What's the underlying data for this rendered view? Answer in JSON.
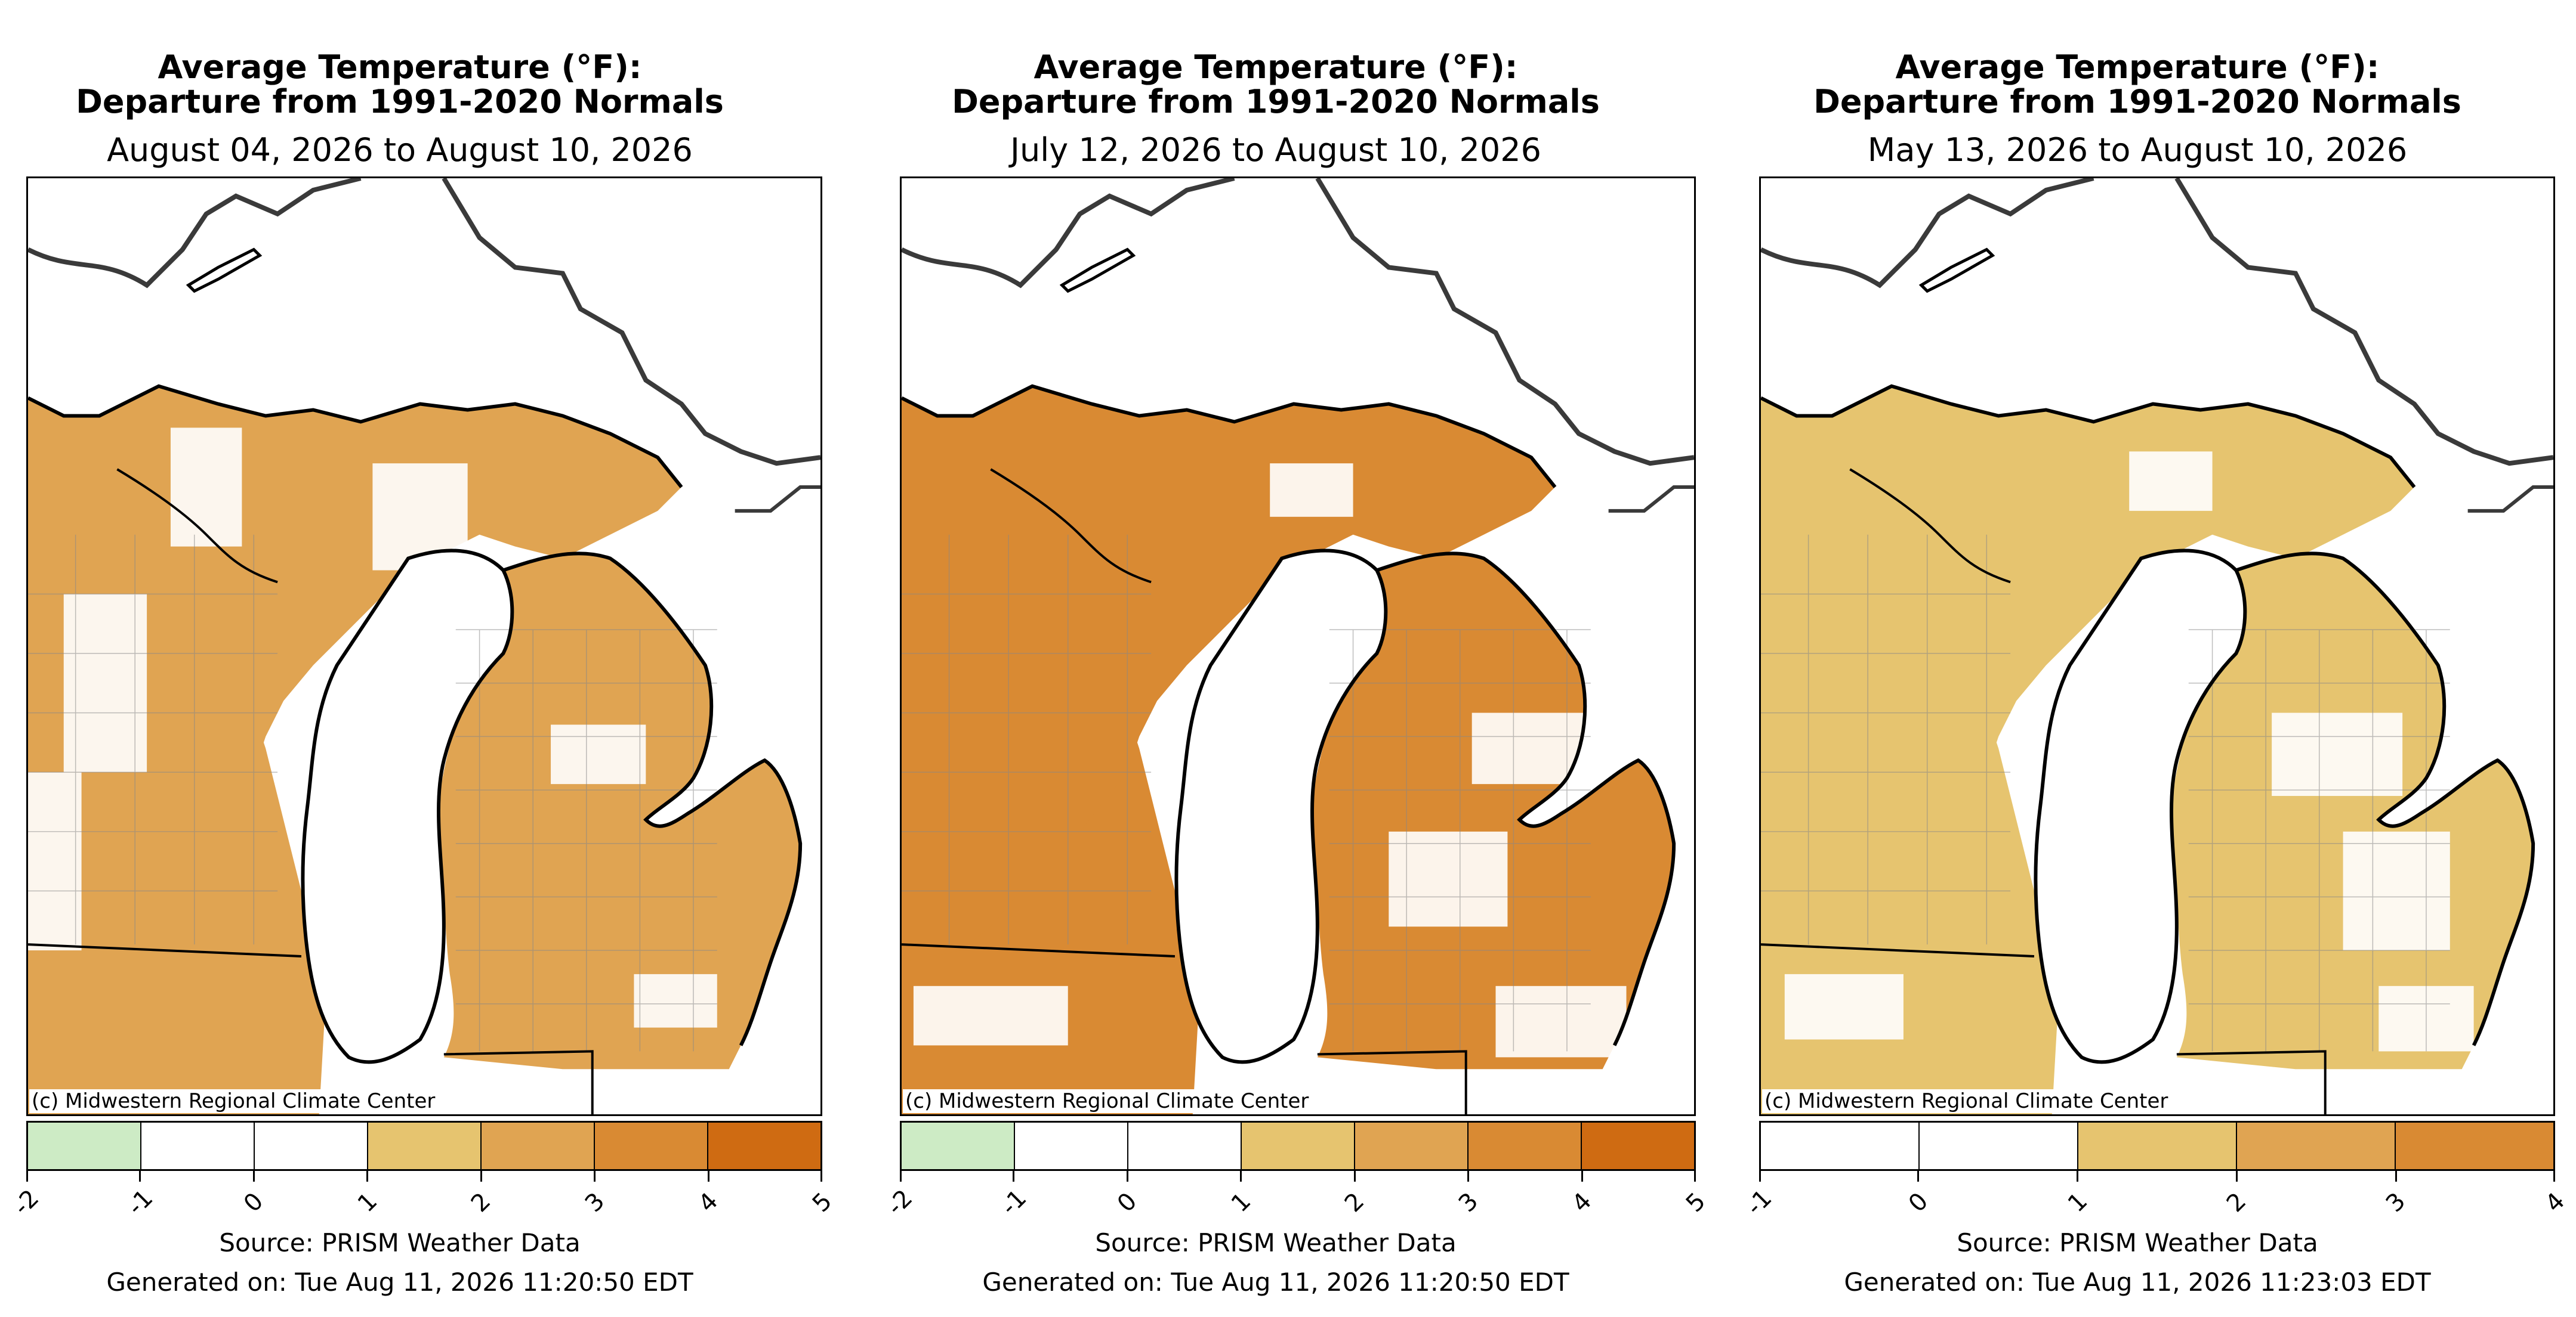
{
  "colors": {
    "cooler_1_2": "#cdebc5",
    "normal": "#ffffff",
    "warmer_1_2": "#e6c46f",
    "warmer_2_3": "#e0a452",
    "warmer_3_4": "#d98a33",
    "warmer_4_5": "#cf6b12",
    "state_border": "#000000",
    "coast_border": "#3a3a3a",
    "county_border": "#888888"
  },
  "panels": [
    {
      "title_line1": "Average Temperature (°F):",
      "title_line2": "Departure from 1991-2020 Normals",
      "date_range": "August 04, 2026 to August 10, 2026",
      "credit": "(c) Midwestern Regional Climate Center",
      "legend_ticks": [
        "-2",
        "-1",
        "0",
        "1",
        "2",
        "3",
        "4",
        "5"
      ],
      "legend_colors": [
        "#cdebc5",
        "#ffffff",
        "#ffffff",
        "#e6c46f",
        "#e0a452",
        "#d98a33",
        "#cf6b12"
      ],
      "source": "Source: PRISM Weather Data",
      "generated": "Generated on: Tue Aug 11, 2026 11:20:50 EDT",
      "map_fill_dominant": "#e0a452"
    },
    {
      "title_line1": "Average Temperature (°F):",
      "title_line2": "Departure from 1991-2020 Normals",
      "date_range": "July 12, 2026 to August 10, 2026",
      "credit": "(c) Midwestern Regional Climate Center",
      "legend_ticks": [
        "-2",
        "-1",
        "0",
        "1",
        "2",
        "3",
        "4",
        "5"
      ],
      "legend_colors": [
        "#cdebc5",
        "#ffffff",
        "#ffffff",
        "#e6c46f",
        "#e0a452",
        "#d98a33",
        "#cf6b12"
      ],
      "source": "Source: PRISM Weather Data",
      "generated": "Generated on: Tue Aug 11, 2026 11:20:50 EDT",
      "map_fill_dominant": "#d98a33"
    },
    {
      "title_line1": "Average Temperature (°F):",
      "title_line2": "Departure from 1991-2020 Normals",
      "date_range": "May 13, 2026 to August 10, 2026",
      "credit": "(c) Midwestern Regional Climate Center",
      "legend_ticks": [
        "-1",
        "0",
        "1",
        "2",
        "3",
        "4"
      ],
      "legend_colors": [
        "#ffffff",
        "#ffffff",
        "#e6c46f",
        "#e0a452",
        "#d98a33"
      ],
      "source": "Source: PRISM Weather Data",
      "generated": "Generated on: Tue Aug 11, 2026 11:23:03 EDT",
      "map_fill_dominant": "#e6c46f"
    }
  ]
}
